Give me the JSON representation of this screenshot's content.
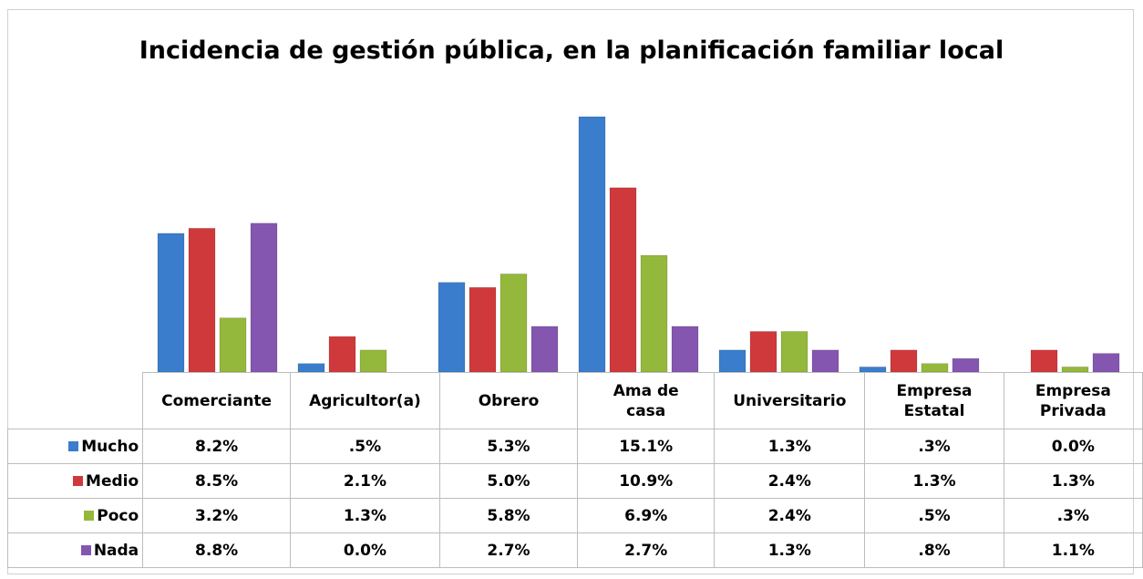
{
  "chart_data": {
    "type": "bar",
    "title": "Incidencia de gestión pública, en la planificación familiar local",
    "categories": [
      "Comerciante",
      "Agricultor(a)",
      "Obrero",
      "Ama de casa",
      "Universitario",
      "Empresa Estatal",
      "Empresa Privada"
    ],
    "series": [
      {
        "name": "Mucho",
        "color": "#3a7dcc",
        "values": [
          8.2,
          0.5,
          5.3,
          15.1,
          1.3,
          0.3,
          0.0
        ],
        "value_labels": [
          "8.2%",
          ".5%",
          "5.3%",
          "15.1%",
          "1.3%",
          ".3%",
          "0.0%"
        ]
      },
      {
        "name": "Medio",
        "color": "#d0393b",
        "values": [
          8.5,
          2.1,
          5.0,
          10.9,
          2.4,
          1.3,
          1.3
        ],
        "value_labels": [
          "8.5%",
          "2.1%",
          "5.0%",
          "10.9%",
          "2.4%",
          "1.3%",
          "1.3%"
        ]
      },
      {
        "name": "Poco",
        "color": "#94b83b",
        "values": [
          3.2,
          1.3,
          5.8,
          6.9,
          2.4,
          0.5,
          0.3
        ],
        "value_labels": [
          "3.2%",
          "1.3%",
          "5.8%",
          "6.9%",
          "2.4%",
          ".5%",
          ".3%"
        ]
      },
      {
        "name": "Nada",
        "color": "#8456b0",
        "values": [
          8.8,
          0.0,
          2.7,
          2.7,
          1.3,
          0.8,
          1.1
        ],
        "value_labels": [
          "8.8%",
          "0.0%",
          "2.7%",
          "2.7%",
          "1.3%",
          ".8%",
          "1.1%"
        ]
      }
    ]
  }
}
